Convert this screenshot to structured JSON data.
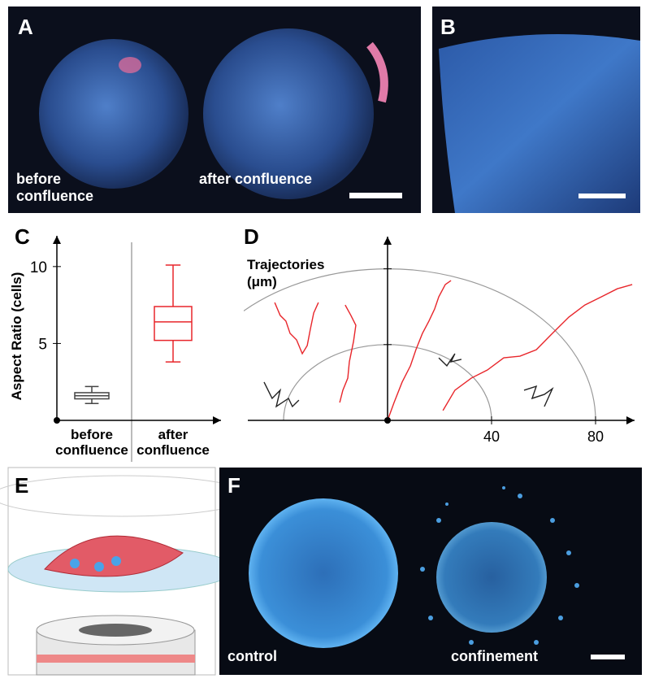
{
  "panels": {
    "A": {
      "label": "A",
      "captions": [
        "before confluence",
        "after confluence"
      ]
    },
    "B": {
      "label": "B"
    },
    "C": {
      "label": "C"
    },
    "D": {
      "label": "D"
    },
    "E": {
      "label": "E"
    },
    "F": {
      "label": "F",
      "captions": [
        "control",
        "confinement"
      ]
    }
  },
  "chart_data": [
    {
      "type": "box",
      "ylabel": "Aspect Ratio (cells)",
      "categories": [
        "before confluence",
        "after confluence"
      ],
      "boxes": [
        {
          "whislo": 1.1,
          "q1": 1.4,
          "median": 1.6,
          "q3": 1.8,
          "whishi": 2.2,
          "color": "#444444"
        },
        {
          "whislo": 3.8,
          "q1": 5.2,
          "median": 6.4,
          "q3": 7.4,
          "whishi": 10.1,
          "color": "#e8262b"
        }
      ],
      "ylim": [
        0,
        12
      ],
      "yticks": [
        5,
        10
      ]
    },
    {
      "type": "line",
      "title": "Trajectories (μm)",
      "xlim": [
        -55,
        95
      ],
      "ylim": [
        0,
        97
      ],
      "xticks": [
        40,
        80
      ],
      "rings": true,
      "series": [
        {
          "color": "#e8262b",
          "x": [
            -43.4,
            -41.3,
            -39.1,
            -37.5,
            -35,
            -32.8,
            -30.9,
            -29.7,
            -28.4,
            -26.6
          ],
          "y": [
            62.2,
            55.4,
            52.4,
            45.9,
            42.5,
            35.2,
            39.5,
            48.1,
            56.7,
            62.2
          ]
        },
        {
          "color": "#e8262b",
          "x": [
            -16.3,
            -14.1,
            -12.2,
            -13.1,
            -14.7,
            -15.3,
            -17.2,
            -18.4
          ],
          "y": [
            60.9,
            55.4,
            50.2,
            41.6,
            30.9,
            22.3,
            15.9,
            9.4
          ]
        },
        {
          "color": "#e8262b",
          "x": [
            0,
            2.5,
            5.6,
            8.8,
            10.9,
            13.4,
            15.9,
            18.1,
            19.7,
            22.2,
            24.4
          ],
          "y": [
            0,
            9.4,
            20.2,
            28.8,
            37.3,
            45.9,
            52.4,
            58.8,
            65.2,
            71.7,
            73.8
          ]
        },
        {
          "color": "#e8262b",
          "x": [
            21.3,
            25.9,
            32.2,
            38.4,
            44.7,
            50.9,
            57.2,
            63.4,
            69.7,
            75.9,
            82.2,
            88.4,
            94.1
          ],
          "y": [
            5.2,
            15.9,
            22.3,
            26.6,
            33.0,
            33.9,
            37.3,
            45.9,
            54.5,
            60.9,
            65.2,
            69.5,
            71.7
          ]
        },
        {
          "color": "#222222",
          "x": [
            -47.5,
            -44.4,
            -41.3,
            -42.8,
            -38.1,
            -36.6,
            -34.1
          ],
          "y": [
            20.2,
            11.6,
            15.9,
            7.3,
            11.6,
            7.3,
            10.7
          ]
        },
        {
          "color": "#222222",
          "x": [
            19.7,
            22.8,
            25.9,
            24.4,
            28.4
          ],
          "y": [
            33.0,
            28.8,
            35.2,
            30.9,
            32.2
          ]
        },
        {
          "color": "#222222",
          "x": [
            52.5,
            57.2,
            55.6,
            60.3,
            63.4,
            60.3
          ],
          "y": [
            15.9,
            18.0,
            11.6,
            13.7,
            16.7,
            7.3
          ]
        }
      ]
    }
  ]
}
